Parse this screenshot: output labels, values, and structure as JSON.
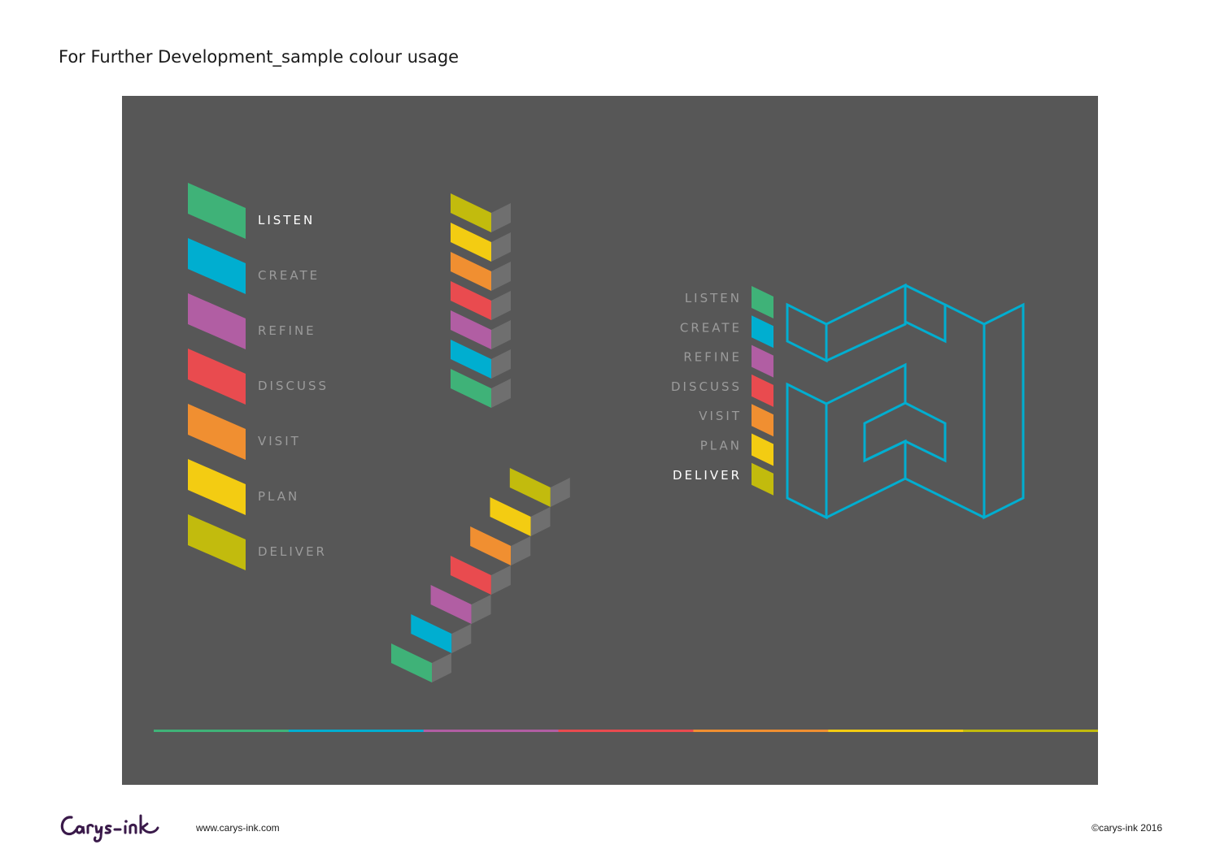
{
  "page_title": "For Further Development_sample colour usage",
  "steps": [
    {
      "label": "LISTEN",
      "color": "#3fb278",
      "highlight": true
    },
    {
      "label": "CREATE",
      "color": "#00aed0",
      "highlight": false
    },
    {
      "label": "REFINE",
      "color": "#b15ea3",
      "highlight": false
    },
    {
      "label": "DISCUSS",
      "color": "#e94b4f",
      "highlight": false
    },
    {
      "label": "VISIT",
      "color": "#f08f31",
      "highlight": false
    },
    {
      "label": "PLAN",
      "color": "#f3cc12",
      "highlight": false
    },
    {
      "label": "DELIVER",
      "color": "#c2bb0d",
      "highlight": false
    }
  ],
  "side_steps": [
    {
      "label": "LISTEN",
      "color": "#3fb278",
      "highlight": false
    },
    {
      "label": "CREATE",
      "color": "#00aed0",
      "highlight": false
    },
    {
      "label": "REFINE",
      "color": "#b15ea3",
      "highlight": false
    },
    {
      "label": "DISCUSS",
      "color": "#e94b4f",
      "highlight": false
    },
    {
      "label": "VISIT",
      "color": "#f08f31",
      "highlight": false
    },
    {
      "label": "PLAN",
      "color": "#f3cc12",
      "highlight": false
    },
    {
      "label": "DELIVER",
      "color": "#c2bb0d",
      "highlight": true
    }
  ],
  "colors": {
    "panel_bg": "#575757",
    "label_dim": "#9b9b9b",
    "label_active": "#ffffff",
    "block_grey": "#6f6f6f",
    "emblem_stroke": "#00aed0"
  },
  "footer": {
    "logo_text": "Carys-ink",
    "url": "www.carys-ink.com",
    "copyright": "©carys-ink 2016"
  }
}
